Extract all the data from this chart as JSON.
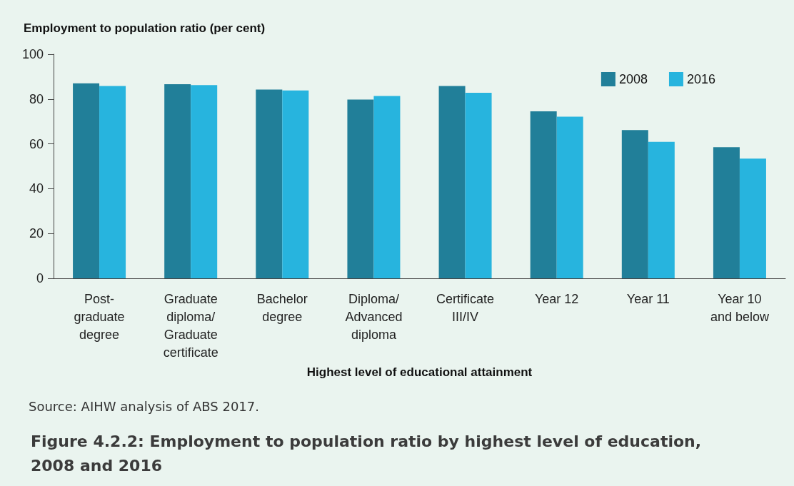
{
  "chart_data": {
    "type": "bar",
    "title": "Figure 4.2.2: Employment to population ratio by highest level of education,\n2008 and 2016",
    "ylabel": "Employment to population ratio (per cent)",
    "xlabel": "Highest level of educational attainment",
    "annotations": [
      "Source: AIHW analysis of ABS 2017."
    ],
    "categories": [
      "Post-\ngraduate\ndegree",
      "Graduate\ndiploma/\nGraduate\ncertificate",
      "Bachelor\ndegree",
      "Diploma/\nAdvanced\ndiploma",
      "Certificate\nIII/IV",
      "Year 12",
      "Year 11",
      "Year 10\nand below"
    ],
    "series": [
      {
        "name": "2008",
        "color": "#217f99",
        "values": [
          87.0,
          86.6,
          84.2,
          79.8,
          85.8,
          74.5,
          66.2,
          58.5
        ]
      },
      {
        "name": "2016",
        "color": "#27b4de",
        "values": [
          85.8,
          86.2,
          83.8,
          81.4,
          82.8,
          72.1,
          60.9,
          53.4
        ]
      }
    ],
    "ylim": [
      0,
      100
    ],
    "yticks": [
      0,
      20,
      40,
      60,
      80,
      100
    ],
    "grid": false,
    "legend": "top right"
  }
}
